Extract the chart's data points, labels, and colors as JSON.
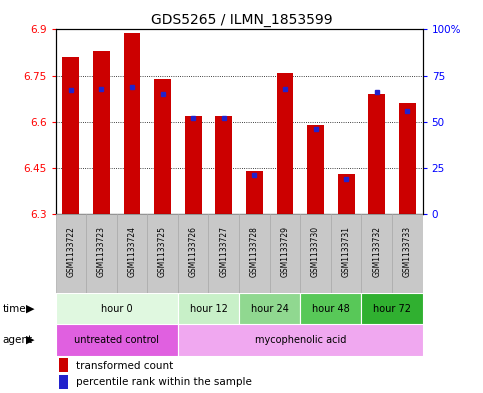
{
  "title": "GDS5265 / ILMN_1853599",
  "samples": [
    "GSM1133722",
    "GSM1133723",
    "GSM1133724",
    "GSM1133725",
    "GSM1133726",
    "GSM1133727",
    "GSM1133728",
    "GSM1133729",
    "GSM1133730",
    "GSM1133731",
    "GSM1133732",
    "GSM1133733"
  ],
  "red_values": [
    6.81,
    6.83,
    6.89,
    6.74,
    6.62,
    6.62,
    6.44,
    6.76,
    6.59,
    6.43,
    6.69,
    6.66
  ],
  "blue_values": [
    67,
    68,
    69,
    65,
    52,
    52,
    21,
    68,
    46,
    19,
    66,
    56
  ],
  "ymin": 6.3,
  "ymax": 6.9,
  "yticks": [
    6.3,
    6.45,
    6.6,
    6.75,
    6.9
  ],
  "ytick_labels": [
    "6.3",
    "6.45",
    "6.6",
    "6.75",
    "6.9"
  ],
  "right_yticks": [
    0,
    25,
    50,
    75,
    100
  ],
  "right_ytick_labels": [
    "0",
    "25",
    "50",
    "75",
    "100%"
  ],
  "time_groups": [
    {
      "label": "hour 0",
      "start": 0,
      "end": 4,
      "color": "#e0f8e0"
    },
    {
      "label": "hour 12",
      "start": 4,
      "end": 6,
      "color": "#c8f0c8"
    },
    {
      "label": "hour 24",
      "start": 6,
      "end": 8,
      "color": "#90d890"
    },
    {
      "label": "hour 48",
      "start": 8,
      "end": 10,
      "color": "#58c858"
    },
    {
      "label": "hour 72",
      "start": 10,
      "end": 12,
      "color": "#30b030"
    }
  ],
  "agent_groups": [
    {
      "label": "untreated control",
      "start": 0,
      "end": 4,
      "color": "#e060e0"
    },
    {
      "label": "mycophenolic acid",
      "start": 4,
      "end": 12,
      "color": "#f0a8f0"
    }
  ],
  "bar_width": 0.55,
  "red_color": "#cc0000",
  "blue_color": "#2222cc",
  "label_bg": "#c8c8c8",
  "label_edge": "#aaaaaa"
}
